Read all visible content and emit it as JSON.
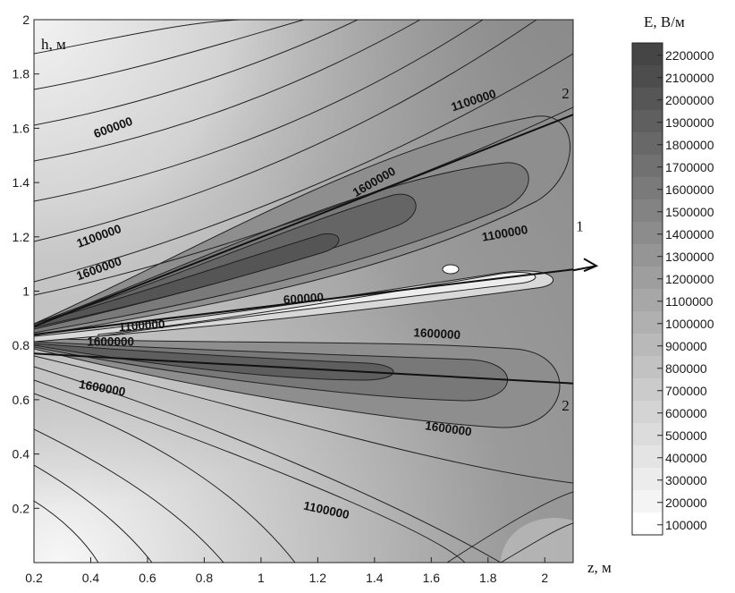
{
  "chart_data": {
    "type": "heatmap",
    "title": "",
    "xlabel": "z, м",
    "ylabel": "h, м",
    "xlim": [
      0.2,
      2.1
    ],
    "ylim": [
      0.0,
      2.0
    ],
    "x_ticks": [
      "0.2",
      "0.4",
      "0.6",
      "0.8",
      "1",
      "1.2",
      "1.4",
      "1.6",
      "1.8",
      "2"
    ],
    "y_ticks": [
      "0.2",
      "0.4",
      "0.6",
      "0.8",
      "1",
      "1.2",
      "1.4",
      "1.6",
      "1.8",
      "2"
    ],
    "colorbar": {
      "title": "E, В/м",
      "levels": [
        "2200000",
        "2100000",
        "2000000",
        "1900000",
        "1800000",
        "1700000",
        "1600000",
        "1500000",
        "1400000",
        "1300000",
        "1200000",
        "1100000",
        "1000000",
        "900000",
        "800000",
        "700000",
        "600000",
        "500000",
        "400000",
        "300000",
        "200000",
        "100000"
      ],
      "colors": [
        "#454545",
        "#4d4d4d",
        "#565656",
        "#5f5f5f",
        "#686868",
        "#717171",
        "#7a7a7a",
        "#838383",
        "#8c8c8c",
        "#959595",
        "#9e9e9e",
        "#a7a7a7",
        "#b0b0b0",
        "#b9b9b9",
        "#c2c2c2",
        "#cbcbcb",
        "#d4d4d4",
        "#dcdcdc",
        "#e4e4e4",
        "#ececec",
        "#f4f4f4",
        "#ffffff"
      ]
    },
    "contour_labels": [
      {
        "text": "600000",
        "x": 0.48,
        "y": 1.6,
        "angle": -20
      },
      {
        "text": "1100000",
        "x": 1.75,
        "y": 1.7,
        "angle": -18
      },
      {
        "text": "1100000",
        "x": 0.43,
        "y": 1.2,
        "angle": -20
      },
      {
        "text": "1600000",
        "x": 0.43,
        "y": 1.08,
        "angle": -20
      },
      {
        "text": "1600000",
        "x": 1.4,
        "y": 1.4,
        "angle": -30
      },
      {
        "text": "1100000",
        "x": 1.86,
        "y": 1.21,
        "angle": -10
      },
      {
        "text": "600000",
        "x": 1.15,
        "y": 0.97,
        "angle": -4
      },
      {
        "text": "1100000",
        "x": 0.58,
        "y": 0.87,
        "angle": -4
      },
      {
        "text": "1600000",
        "x": 0.47,
        "y": 0.81,
        "angle": 0
      },
      {
        "text": "1600000",
        "x": 1.62,
        "y": 0.84,
        "angle": 3
      },
      {
        "text": "1600000",
        "x": 0.44,
        "y": 0.64,
        "angle": 10
      },
      {
        "text": "1600000",
        "x": 1.66,
        "y": 0.49,
        "angle": 8
      },
      {
        "text": "1100000",
        "x": 1.23,
        "y": 0.19,
        "angle": 12
      }
    ],
    "annotations": [
      {
        "text": "2",
        "x": 2.06,
        "y": 1.71
      },
      {
        "text": "1",
        "x": 2.11,
        "y": 1.22
      },
      {
        "text": "2",
        "x": 2.06,
        "y": 0.56
      }
    ],
    "lines": [
      {
        "name": "1",
        "x": [
          0.2,
          2.1
        ],
        "y": [
          0.84,
          1.08
        ]
      },
      {
        "name": "2",
        "x": [
          0.2,
          2.1
        ],
        "y": [
          0.87,
          1.65
        ]
      },
      {
        "name": "2",
        "x": [
          0.2,
          2.1
        ],
        "y": [
          0.77,
          0.66
        ]
      }
    ],
    "legend_position": "right"
  }
}
